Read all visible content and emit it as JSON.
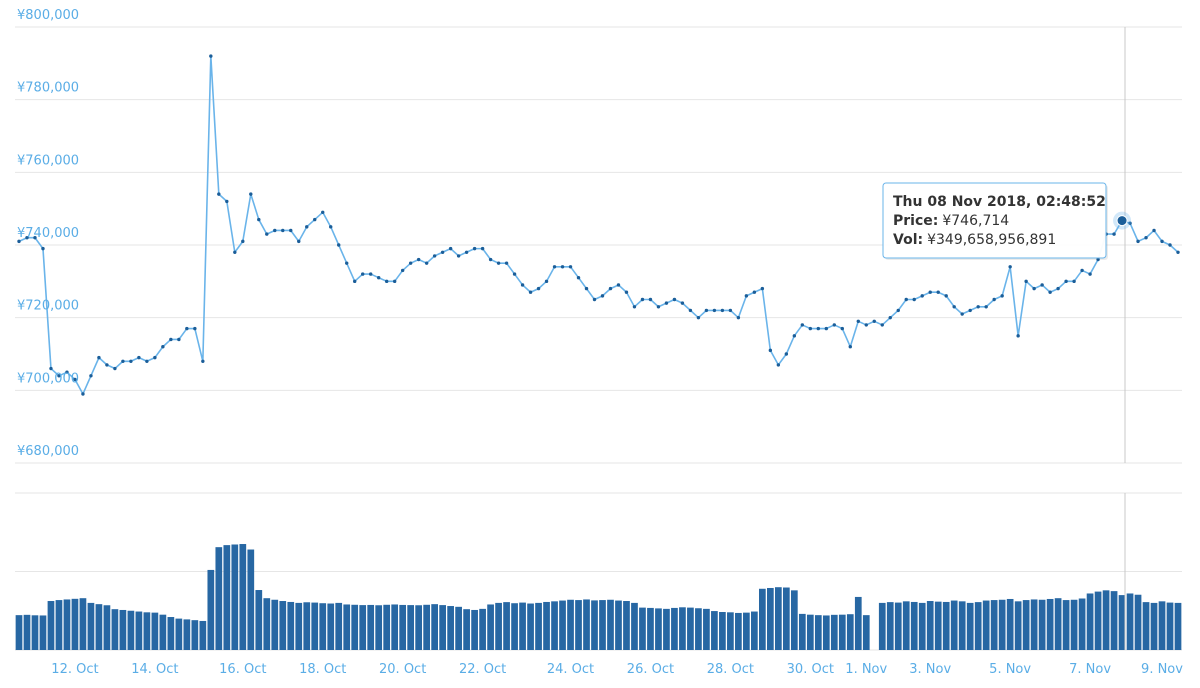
{
  "chart_data": [
    {
      "type": "line",
      "color": "#6ab4ea",
      "marker_color": "#1b5e99",
      "grid": true,
      "ylim": [
        680000,
        800000
      ],
      "yticks": [
        {
          "value": 680000,
          "label": "¥680,000"
        },
        {
          "value": 700000,
          "label": "¥700,000"
        },
        {
          "value": 720000,
          "label": "¥720,000"
        },
        {
          "value": 740000,
          "label": "¥740,000"
        },
        {
          "value": 760000,
          "label": "¥760,000"
        },
        {
          "value": 780000,
          "label": "¥780,000"
        },
        {
          "value": 800000,
          "label": "¥800,000"
        }
      ],
      "categories": [
        null,
        null,
        null,
        null,
        null,
        null,
        null,
        "12. Oct",
        null,
        null,
        null,
        null,
        null,
        null,
        null,
        null,
        null,
        "14. Oct",
        null,
        null,
        null,
        null,
        null,
        null,
        null,
        null,
        null,
        null,
        "16. Oct",
        null,
        null,
        null,
        null,
        null,
        null,
        null,
        null,
        null,
        "18. Oct",
        null,
        null,
        null,
        null,
        null,
        null,
        null,
        null,
        null,
        "20. Oct",
        null,
        null,
        null,
        null,
        null,
        null,
        null,
        null,
        null,
        "22. Oct",
        null,
        null,
        null,
        null,
        null,
        null,
        null,
        null,
        null,
        null,
        "24. Oct",
        null,
        null,
        null,
        null,
        null,
        null,
        null,
        null,
        null,
        "26. Oct",
        null,
        null,
        null,
        null,
        null,
        null,
        null,
        null,
        null,
        "28. Oct",
        null,
        null,
        null,
        null,
        null,
        null,
        null,
        null,
        null,
        "30. Oct",
        null,
        null,
        null,
        null,
        null,
        null,
        "1. Nov",
        null,
        null,
        null,
        null,
        null,
        null,
        null,
        "3. Nov",
        null,
        null,
        null,
        null,
        null,
        null,
        null,
        null,
        null,
        "5. Nov",
        null,
        null,
        null,
        null,
        null,
        null,
        null,
        null,
        null,
        "7. Nov",
        null,
        null,
        null,
        null,
        null,
        null,
        null,
        null,
        "9. Nov",
        null,
        null
      ],
      "values": [
        741000,
        742000,
        742000,
        739000,
        706000,
        704000,
        705000,
        703000,
        699000,
        704000,
        709000,
        707000,
        706000,
        708000,
        708000,
        709000,
        708000,
        709000,
        712000,
        714000,
        714000,
        717000,
        717000,
        708000,
        792000,
        754000,
        752000,
        738000,
        741000,
        754000,
        747000,
        743000,
        744000,
        744000,
        744000,
        741000,
        745000,
        747000,
        749000,
        745000,
        740000,
        735000,
        730000,
        732000,
        732000,
        731000,
        730000,
        730000,
        733000,
        735000,
        736000,
        735000,
        737000,
        738000,
        739000,
        737000,
        738000,
        739000,
        739000,
        736000,
        735000,
        735000,
        732000,
        729000,
        727000,
        728000,
        730000,
        734000,
        734000,
        734000,
        731000,
        728000,
        725000,
        726000,
        728000,
        729000,
        727000,
        723000,
        725000,
        725000,
        723000,
        724000,
        725000,
        724000,
        722000,
        720000,
        722000,
        722000,
        722000,
        722000,
        720000,
        726000,
        727000,
        728000,
        711000,
        707000,
        710000,
        715000,
        718000,
        717000,
        717000,
        717000,
        718000,
        717000,
        712000,
        719000,
        718000,
        719000,
        718000,
        720000,
        722000,
        725000,
        725000,
        726000,
        727000,
        727000,
        726000,
        723000,
        721000,
        722000,
        723000,
        723000,
        725000,
        726000,
        734000,
        715000,
        730000,
        728000,
        729000,
        727000,
        728000,
        730000,
        730000,
        733000,
        732000,
        736000,
        743000,
        743000,
        746714,
        746000,
        741000,
        742000,
        744000,
        741000,
        740000,
        738000
      ]
    },
    {
      "type": "bar",
      "color": "#2767a3",
      "grid": true,
      "ylim": [
        0,
        1000000000000.0
      ],
      "yticks": [
        0,
        500000000000.0,
        1000000000000.0
      ],
      "values": [
        222000000000.0,
        224000000000.0,
        221000000000.0,
        220000000000.0,
        312000000000.0,
        318000000000.0,
        322000000000.0,
        326000000000.0,
        330000000000.0,
        300000000000.0,
        292000000000.0,
        285000000000.0,
        260000000000.0,
        255000000000.0,
        250000000000.0,
        245000000000.0,
        240000000000.0,
        238000000000.0,
        225000000000.0,
        210000000000.0,
        200000000000.0,
        195000000000.0,
        190000000000.0,
        185000000000.0,
        510000000000.0,
        655000000000.0,
        668000000000.0,
        672000000000.0,
        675000000000.0,
        640000000000.0,
        382000000000.0,
        330000000000.0,
        320000000000.0,
        312000000000.0,
        306000000000.0,
        300000000000.0,
        304000000000.0,
        302000000000.0,
        298000000000.0,
        296000000000.0,
        300000000000.0,
        290000000000.0,
        288000000000.0,
        286000000000.0,
        287000000000.0,
        285000000000.0,
        288000000000.0,
        290000000000.0,
        287000000000.0,
        286000000000.0,
        285000000000.0,
        288000000000.0,
        292000000000.0,
        286000000000.0,
        280000000000.0,
        275000000000.0,
        260000000000.0,
        255000000000.0,
        262000000000.0,
        290000000000.0,
        300000000000.0,
        305000000000.0,
        298000000000.0,
        302000000000.0,
        296000000000.0,
        300000000000.0,
        306000000000.0,
        310000000000.0,
        315000000000.0,
        320000000000.0,
        318000000000.0,
        322000000000.0,
        316000000000.0,
        318000000000.0,
        320000000000.0,
        315000000000.0,
        312000000000.0,
        300000000000.0,
        270000000000.0,
        268000000000.0,
        265000000000.0,
        262000000000.0,
        268000000000.0,
        272000000000.0,
        270000000000.0,
        266000000000.0,
        262000000000.0,
        248000000000.0,
        242000000000.0,
        240000000000.0,
        236000000000.0,
        238000000000.0,
        245000000000.0,
        390000000000.0,
        395000000000.0,
        400000000000.0,
        398000000000.0,
        380000000000.0,
        230000000000.0,
        225000000000.0,
        222000000000.0,
        220000000000.0,
        224000000000.0,
        225000000000.0,
        228000000000.0,
        338000000000.0,
        222000000000.0,
        null,
        300000000000.0,
        305000000000.0,
        302000000000.0,
        310000000000.0,
        306000000000.0,
        300000000000.0,
        312000000000.0,
        308000000000.0,
        306000000000.0,
        315000000000.0,
        310000000000.0,
        300000000000.0,
        305000000000.0,
        315000000000.0,
        318000000000.0,
        320000000000.0,
        325000000000.0,
        310000000000.0,
        318000000000.0,
        322000000000.0,
        320000000000.0,
        325000000000.0,
        330000000000.0,
        318000000000.0,
        320000000000.0,
        328000000000.0,
        360000000000.0,
        372000000000.0,
        380000000000.0,
        375000000000.0,
        349658956891,
        360000000000.0,
        352000000000.0,
        305000000000.0,
        300000000000.0,
        310000000000.0,
        302000000000.0,
        300000000000.0
      ]
    }
  ],
  "tooltip": {
    "title": "Thu 08 Nov 2018, 02:48:52",
    "price_label": "Price:",
    "price": "¥746,714",
    "vol_label": "Vol:",
    "vol": "¥349,658,956,891"
  }
}
